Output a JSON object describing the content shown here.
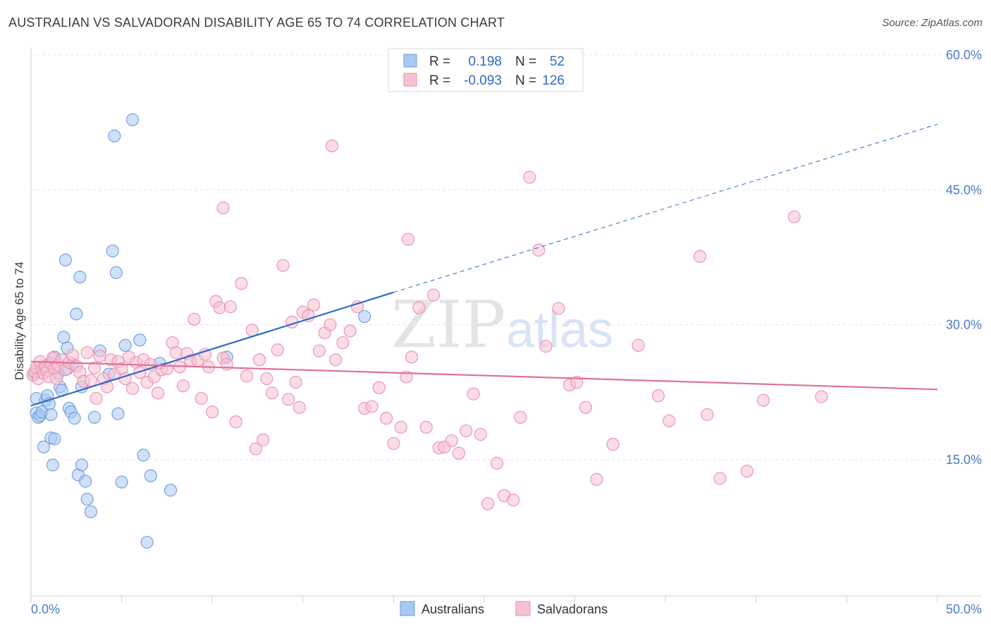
{
  "title": "AUSTRALIAN VS SALVADORAN DISABILITY AGE 65 TO 74 CORRELATION CHART",
  "source": "Source: ZipAtlas.com",
  "watermark": {
    "zip": "ZIP",
    "atlas": "atlas"
  },
  "legend": {
    "r_label": "R =",
    "n_label": "N =",
    "items": [
      {
        "name": "Australians",
        "r": "0.198",
        "n": "52",
        "color": "#a9c8f2",
        "stroke": "#6d9de0"
      },
      {
        "name": "Salvadorans",
        "r": "-0.093",
        "n": "126",
        "color": "#f7c1d1",
        "stroke": "#eb8fae"
      }
    ]
  },
  "chart_data": {
    "type": "scatter",
    "title": "AUSTRALIAN VS SALVADORAN DISABILITY AGE 65 TO 74 CORRELATION CHART",
    "xlabel": "",
    "ylabel": "Disability Age 65 to 74",
    "xlim": [
      0,
      50
    ],
    "ylim": [
      0,
      60
    ],
    "x_ticks": [
      "0.0%",
      "50.0%"
    ],
    "y_ticks": [
      {
        "value": 15,
        "label": "15.0%"
      },
      {
        "value": 30,
        "label": "30.0%"
      },
      {
        "value": 45,
        "label": "45.0%"
      },
      {
        "value": 60,
        "label": "60.0%"
      }
    ],
    "grid": true,
    "series": [
      {
        "name": "Australians",
        "color": "#6d9de0",
        "fill": "#a9c8f2",
        "trend": {
          "x0": 0,
          "y0": 21.0,
          "x1": 20.0,
          "y1": 33.6,
          "dash_x1": 50,
          "dash_y1": 52.3,
          "color": "#2f6bc8"
        },
        "points": [
          [
            0.2,
            24.5
          ],
          [
            0.3,
            21.8
          ],
          [
            0.3,
            20.2
          ],
          [
            0.4,
            19.7
          ],
          [
            0.5,
            19.9
          ],
          [
            0.6,
            20.3
          ],
          [
            0.7,
            16.4
          ],
          [
            0.8,
            21.6
          ],
          [
            0.9,
            22.1
          ],
          [
            1.0,
            21.2
          ],
          [
            1.1,
            20.0
          ],
          [
            1.1,
            17.4
          ],
          [
            1.2,
            14.4
          ],
          [
            1.3,
            17.3
          ],
          [
            1.3,
            26.4
          ],
          [
            1.5,
            24.6
          ],
          [
            1.6,
            23.1
          ],
          [
            1.7,
            22.7
          ],
          [
            1.8,
            28.6
          ],
          [
            1.9,
            37.2
          ],
          [
            2.0,
            25.1
          ],
          [
            2.0,
            27.4
          ],
          [
            2.1,
            20.7
          ],
          [
            2.2,
            20.3
          ],
          [
            2.3,
            25.6
          ],
          [
            2.4,
            19.6
          ],
          [
            2.5,
            31.2
          ],
          [
            2.6,
            13.3
          ],
          [
            2.7,
            35.3
          ],
          [
            2.8,
            14.4
          ],
          [
            2.8,
            23.1
          ],
          [
            3.0,
            12.6
          ],
          [
            3.1,
            10.6
          ],
          [
            3.3,
            9.2
          ],
          [
            3.5,
            19.7
          ],
          [
            3.8,
            27.1
          ],
          [
            4.3,
            24.5
          ],
          [
            4.5,
            38.2
          ],
          [
            4.6,
            51.0
          ],
          [
            4.7,
            35.8
          ],
          [
            4.8,
            20.1
          ],
          [
            5.0,
            12.5
          ],
          [
            5.2,
            27.7
          ],
          [
            5.6,
            52.8
          ],
          [
            6.0,
            28.3
          ],
          [
            6.2,
            15.5
          ],
          [
            6.4,
            5.8
          ],
          [
            6.6,
            13.2
          ],
          [
            7.1,
            25.7
          ],
          [
            7.7,
            11.6
          ],
          [
            10.8,
            26.4
          ],
          [
            18.4,
            30.9
          ]
        ]
      },
      {
        "name": "Salvadorans",
        "color": "#eb8fae",
        "fill": "#f7c1d1",
        "trend": {
          "x0": 0,
          "y0": 25.9,
          "x1": 50,
          "y1": 22.8,
          "color": "#e0709a"
        },
        "points": [
          [
            0.1,
            24.4
          ],
          [
            0.2,
            24.8
          ],
          [
            0.3,
            25.2
          ],
          [
            0.4,
            24.0
          ],
          [
            0.5,
            25.9
          ],
          [
            0.6,
            25.0
          ],
          [
            0.7,
            24.6
          ],
          [
            0.8,
            25.4
          ],
          [
            0.9,
            24.9
          ],
          [
            1.0,
            24.2
          ],
          [
            1.1,
            25.7
          ],
          [
            1.2,
            26.3
          ],
          [
            1.3,
            25.1
          ],
          [
            1.4,
            24.0
          ],
          [
            1.5,
            25.5
          ],
          [
            1.7,
            26.1
          ],
          [
            1.9,
            25.0
          ],
          [
            2.1,
            25.8
          ],
          [
            2.3,
            26.6
          ],
          [
            2.5,
            25.4
          ],
          [
            2.7,
            24.7
          ],
          [
            2.9,
            23.7
          ],
          [
            3.1,
            26.9
          ],
          [
            3.3,
            23.8
          ],
          [
            3.5,
            25.2
          ],
          [
            3.6,
            21.8
          ],
          [
            3.8,
            26.5
          ],
          [
            4.0,
            24.0
          ],
          [
            4.2,
            23.1
          ],
          [
            4.4,
            26.1
          ],
          [
            4.6,
            24.5
          ],
          [
            4.8,
            25.9
          ],
          [
            5.0,
            25.1
          ],
          [
            5.2,
            24.0
          ],
          [
            5.4,
            26.4
          ],
          [
            5.6,
            22.9
          ],
          [
            5.8,
            25.8
          ],
          [
            6.0,
            24.7
          ],
          [
            6.2,
            26.1
          ],
          [
            6.4,
            23.6
          ],
          [
            6.6,
            25.6
          ],
          [
            6.8,
            24.2
          ],
          [
            7.0,
            22.4
          ],
          [
            7.2,
            25.0
          ],
          [
            7.5,
            25.1
          ],
          [
            7.8,
            28.0
          ],
          [
            8.0,
            26.9
          ],
          [
            8.2,
            25.3
          ],
          [
            8.4,
            23.2
          ],
          [
            8.6,
            26.8
          ],
          [
            8.8,
            26.0
          ],
          [
            9.0,
            30.6
          ],
          [
            9.2,
            26.0
          ],
          [
            9.4,
            21.8
          ],
          [
            9.6,
            26.7
          ],
          [
            9.8,
            25.3
          ],
          [
            10.0,
            20.3
          ],
          [
            10.2,
            32.6
          ],
          [
            10.4,
            31.9
          ],
          [
            10.6,
            26.3
          ],
          [
            10.8,
            25.6
          ],
          [
            11.0,
            32.0
          ],
          [
            11.3,
            19.2
          ],
          [
            11.6,
            34.6
          ],
          [
            11.9,
            24.3
          ],
          [
            12.2,
            29.4
          ],
          [
            12.4,
            16.2
          ],
          [
            12.6,
            26.1
          ],
          [
            12.8,
            17.2
          ],
          [
            13.0,
            24.0
          ],
          [
            13.3,
            22.4
          ],
          [
            13.6,
            27.2
          ],
          [
            13.9,
            36.6
          ],
          [
            14.2,
            21.7
          ],
          [
            14.4,
            30.3
          ],
          [
            14.6,
            23.6
          ],
          [
            14.8,
            20.8
          ],
          [
            15.0,
            31.4
          ],
          [
            15.3,
            31.0
          ],
          [
            15.6,
            32.2
          ],
          [
            15.9,
            27.1
          ],
          [
            16.2,
            29.1
          ],
          [
            16.5,
            30.0
          ],
          [
            16.8,
            26.1
          ],
          [
            17.2,
            28.0
          ],
          [
            17.6,
            29.3
          ],
          [
            18.0,
            32.0
          ],
          [
            18.4,
            20.7
          ],
          [
            18.8,
            20.9
          ],
          [
            19.2,
            23.0
          ],
          [
            19.6,
            19.6
          ],
          [
            20.0,
            16.8
          ],
          [
            20.4,
            18.6
          ],
          [
            20.7,
            24.2
          ],
          [
            21.0,
            26.4
          ],
          [
            21.4,
            31.9
          ],
          [
            21.8,
            18.6
          ],
          [
            22.2,
            33.3
          ],
          [
            22.5,
            16.3
          ],
          [
            22.8,
            16.4
          ],
          [
            23.2,
            17.1
          ],
          [
            23.6,
            15.7
          ],
          [
            24.0,
            18.2
          ],
          [
            24.4,
            22.3
          ],
          [
            24.8,
            17.8
          ],
          [
            25.2,
            10.1
          ],
          [
            25.7,
            14.6
          ],
          [
            26.1,
            11.0
          ],
          [
            26.6,
            10.5
          ],
          [
            27.0,
            19.7
          ],
          [
            27.5,
            46.4
          ],
          [
            28.0,
            38.3
          ],
          [
            28.4,
            27.6
          ],
          [
            29.1,
            31.8
          ],
          [
            29.7,
            23.3
          ],
          [
            30.1,
            23.6
          ],
          [
            30.6,
            20.8
          ],
          [
            31.2,
            12.8
          ],
          [
            32.1,
            16.7
          ],
          [
            33.5,
            27.7
          ],
          [
            34.6,
            22.1
          ],
          [
            35.2,
            19.3
          ],
          [
            36.9,
            37.6
          ],
          [
            37.3,
            20.0
          ],
          [
            38.0,
            12.9
          ],
          [
            39.5,
            13.7
          ],
          [
            40.4,
            21.6
          ],
          [
            42.1,
            42.0
          ],
          [
            43.6,
            22.0
          ],
          [
            10.6,
            43.0
          ],
          [
            16.6,
            49.9
          ],
          [
            20.8,
            39.5
          ]
        ]
      }
    ]
  }
}
